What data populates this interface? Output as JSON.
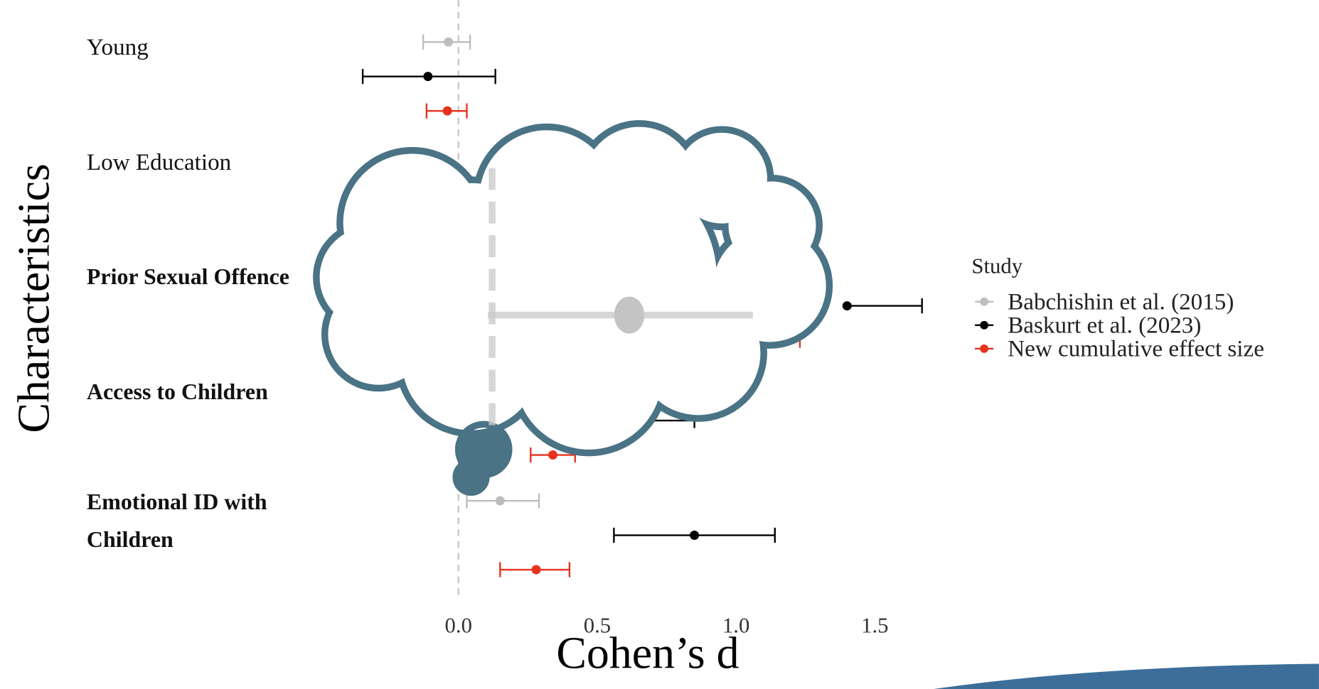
{
  "chart_data": {
    "type": "forest",
    "x_label": "Cohen’s d",
    "y_label": "Characteristics",
    "legend_title": "Study",
    "categories": [
      "Young",
      "Low Education",
      "Prior Sexual Offence",
      "Access to Children",
      "Emotional ID with Children"
    ],
    "series": [
      {
        "name": "Babchishin et al. (2015)",
        "color": "#bdbdbd",
        "values": [
          -0.036,
          null,
          null,
          null,
          0.15
        ],
        "lower": [
          -0.127,
          null,
          null,
          null,
          0.03
        ],
        "upper": [
          0.042,
          null,
          null,
          null,
          0.29
        ]
      },
      {
        "name": "Baskurt et al. (2023)",
        "color": "#000000",
        "values": [
          -0.11,
          null,
          1.4,
          null,
          0.85
        ],
        "lower": [
          -0.345,
          null,
          null,
          null,
          0.56
        ],
        "upper": [
          0.133,
          null,
          1.67,
          0.85,
          1.14
        ]
      },
      {
        "name": "New cumulative effect size",
        "color": "#e8321e",
        "values": [
          -0.04,
          null,
          null,
          0.34,
          0.28
        ],
        "lower": [
          -0.115,
          null,
          null,
          0.26,
          0.15
        ],
        "upper": [
          0.03,
          null,
          1.23,
          0.42,
          0.4
        ]
      }
    ],
    "xlim": [
      -0.4,
      1.75
    ],
    "xticks": [
      {
        "value": 0,
        "label": "0.0"
      },
      {
        "value": 0.5,
        "label": "0.5"
      },
      {
        "value": 1,
        "label": "1.0"
      },
      1.5
    ],
    "reference_line": 0
  }
}
